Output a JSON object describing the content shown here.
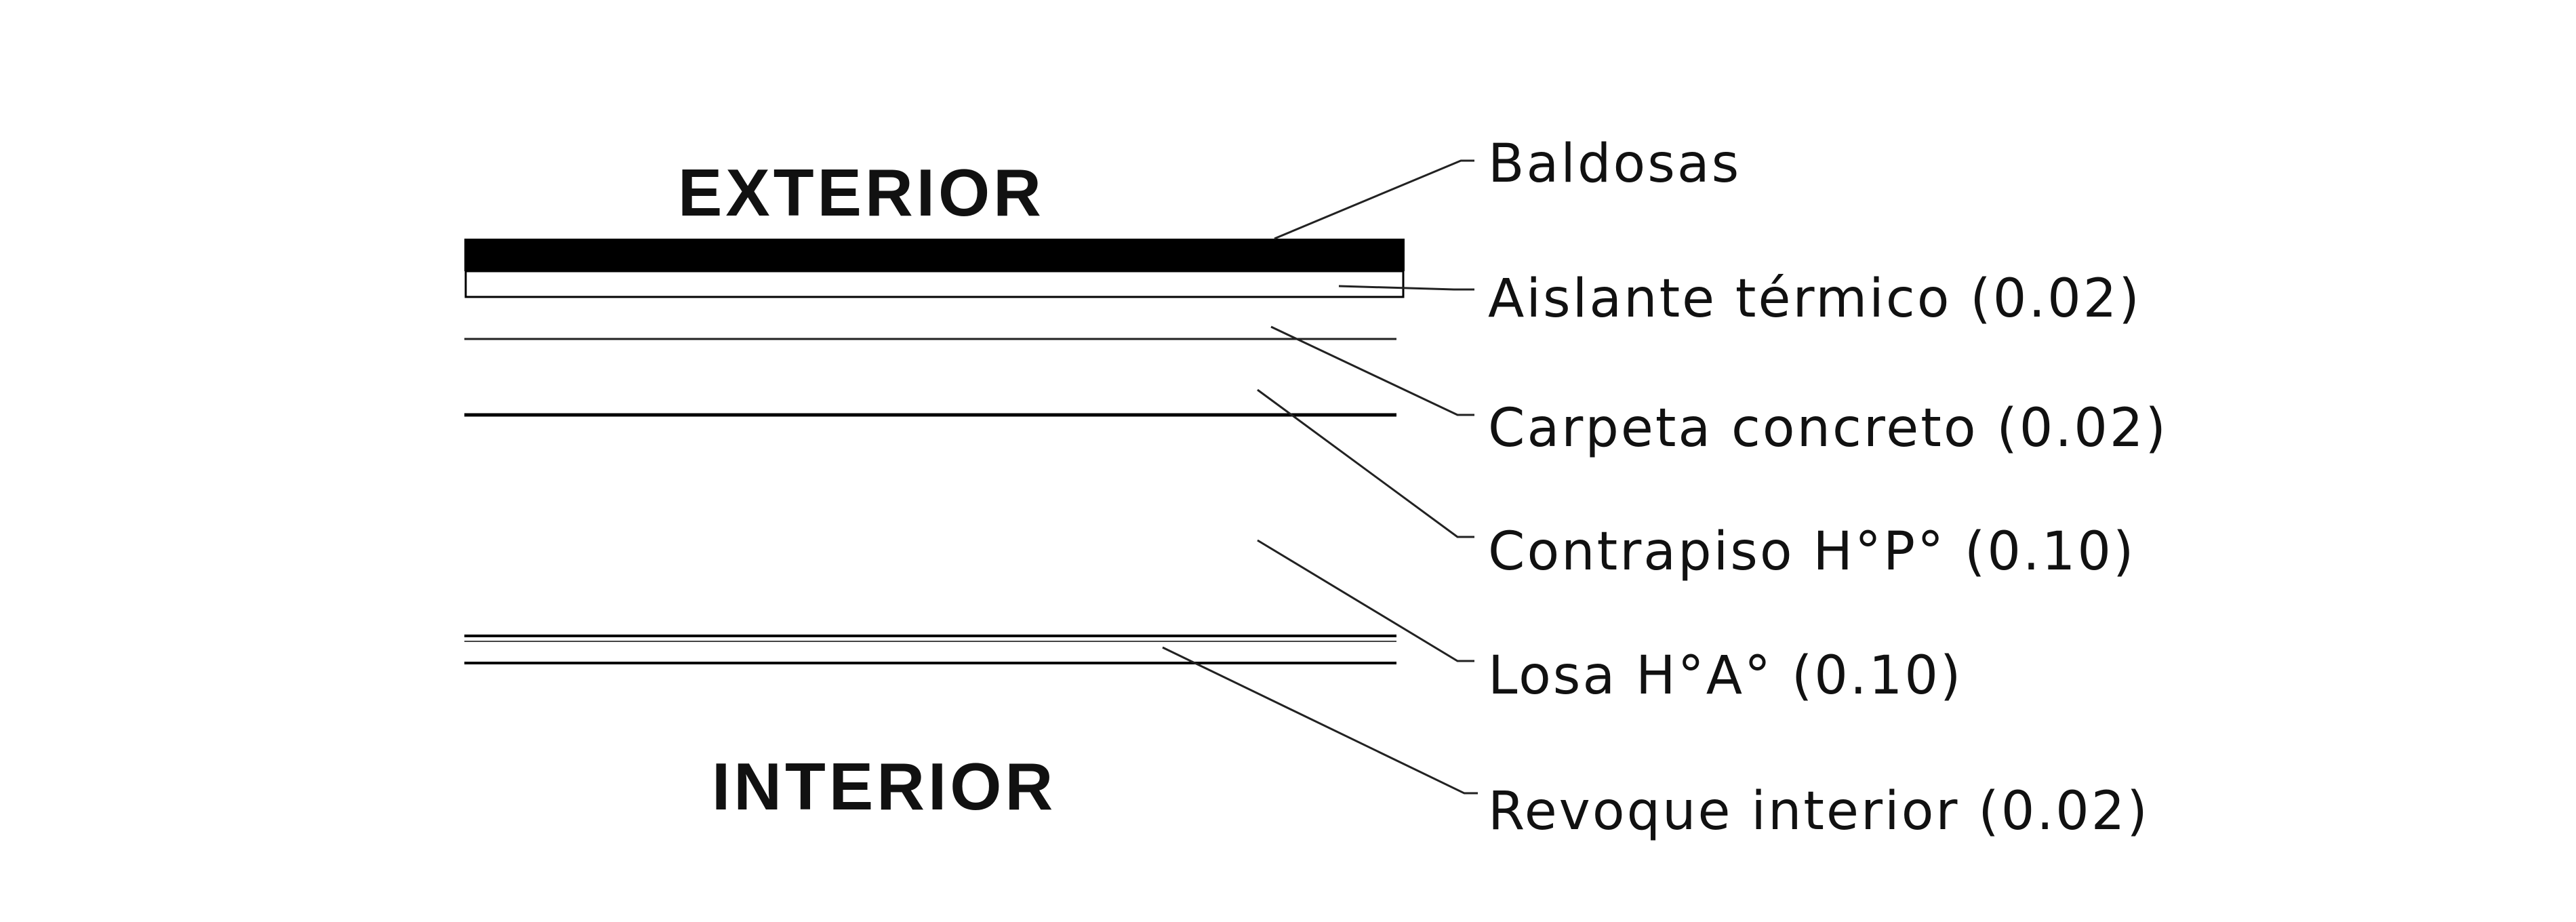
{
  "zones": {
    "exterior": "EXTERIOR",
    "interior": "INTERIOR"
  },
  "layers": [
    {
      "key": "baldosas",
      "label": "Baldosas"
    },
    {
      "key": "aislante",
      "label": "Aislante térmico (0.02)"
    },
    {
      "key": "carpeta",
      "label": "Carpeta concreto (0.02)"
    },
    {
      "key": "contrapiso",
      "label": "Contrapiso H°P° (0.10)"
    },
    {
      "key": "losa",
      "label": "Losa H°A° (0.10)"
    },
    {
      "key": "revoque",
      "label": "Revoque interior (0.02)"
    }
  ]
}
